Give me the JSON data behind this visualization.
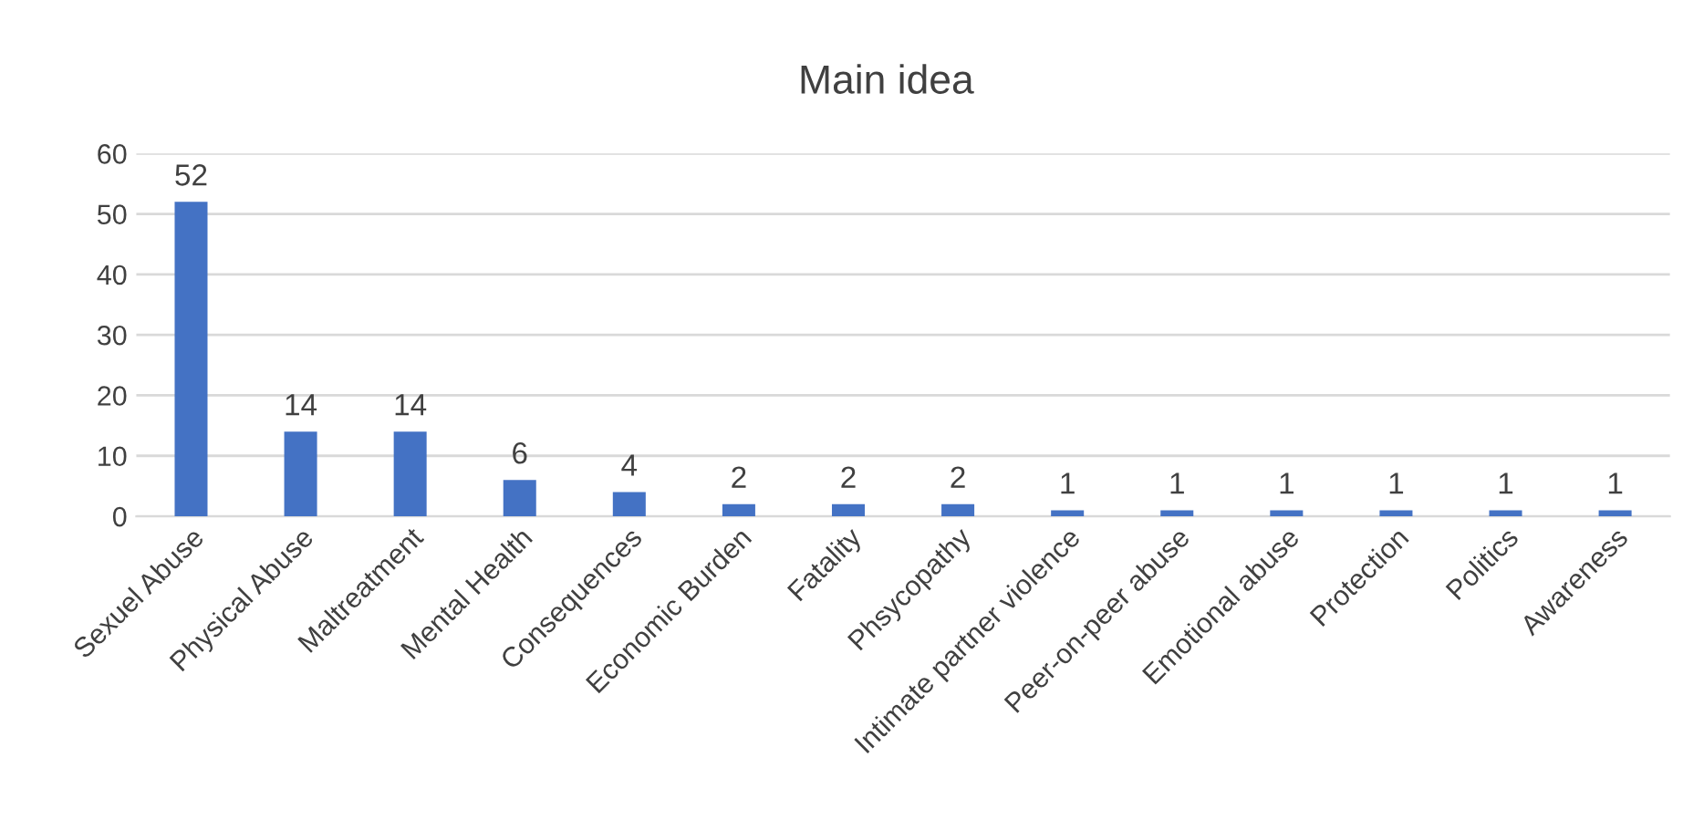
{
  "chart_data": {
    "type": "bar",
    "title": "Main idea",
    "categories": [
      "Sexuel Abuse",
      "Physical Abuse",
      "Maltreatment",
      "Mental Health",
      "Consequences",
      "Economic Burden",
      "Fatality",
      "Phsycopathy",
      "Intimate partner violence",
      "Peer-on-peer abuse",
      "Emotional abuse",
      "Protection",
      "Politics",
      "Awareness"
    ],
    "values": [
      52,
      14,
      14,
      6,
      4,
      2,
      2,
      2,
      1,
      1,
      1,
      1,
      1,
      1
    ],
    "color": "#4472c4",
    "ylim": [
      0,
      60
    ],
    "yticks": [
      0,
      10,
      20,
      30,
      40,
      50,
      60
    ],
    "grid": "y",
    "data_labels": true
  }
}
